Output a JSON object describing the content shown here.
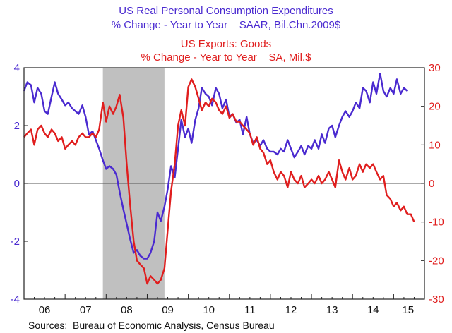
{
  "chart_data": {
    "type": "line",
    "title_lines": [
      "US Real Personal Consumption Expenditures",
      "% Change - Year to Year    SAAR, Bil.Chn.2009$",
      "US Exports: Goods",
      "% Change - Year to Year    SA, Mil.$"
    ],
    "source": "Sources:  Bureau of Economic Analysis, Census Bureau",
    "x_labels": [
      "06",
      "07",
      "08",
      "09",
      "10",
      "11",
      "12",
      "13",
      "14",
      "15"
    ],
    "xlim": [
      2006.0,
      2015.75
    ],
    "shaded_recession": [
      2007.92,
      2009.42
    ],
    "grid": false,
    "zero_line": true,
    "y_left": {
      "ylim": [
        -4,
        4
      ],
      "ticks": [
        "-4",
        "-2",
        "0",
        "2",
        "4"
      ],
      "color": "#4a2ad0"
    },
    "y_right": {
      "ylim": [
        -30,
        30
      ],
      "ticks": [
        "-30",
        "-20",
        "-10",
        "0",
        "10",
        "20",
        "30"
      ],
      "color": "#e01e1e"
    },
    "series": [
      {
        "axis": "left",
        "color": "#4a2ad0",
        "points": [
          [
            2006.0,
            3.2
          ],
          [
            2006.08,
            3.5
          ],
          [
            2006.17,
            3.4
          ],
          [
            2006.25,
            2.8
          ],
          [
            2006.33,
            3.3
          ],
          [
            2006.42,
            3.1
          ],
          [
            2006.5,
            2.5
          ],
          [
            2006.58,
            2.4
          ],
          [
            2006.67,
            3.0
          ],
          [
            2006.75,
            3.5
          ],
          [
            2006.83,
            3.1
          ],
          [
            2006.92,
            2.9
          ],
          [
            2007.0,
            2.7
          ],
          [
            2007.08,
            2.8
          ],
          [
            2007.17,
            2.6
          ],
          [
            2007.25,
            2.5
          ],
          [
            2007.33,
            2.4
          ],
          [
            2007.42,
            2.7
          ],
          [
            2007.5,
            2.3
          ],
          [
            2007.58,
            1.7
          ],
          [
            2007.67,
            1.8
          ],
          [
            2007.75,
            1.5
          ],
          [
            2007.83,
            1.2
          ],
          [
            2007.92,
            0.8
          ],
          [
            2008.0,
            0.5
          ],
          [
            2008.08,
            0.6
          ],
          [
            2008.17,
            0.5
          ],
          [
            2008.25,
            0.3
          ],
          [
            2008.33,
            -0.3
          ],
          [
            2008.42,
            -0.9
          ],
          [
            2008.5,
            -1.4
          ],
          [
            2008.58,
            -1.9
          ],
          [
            2008.67,
            -2.4
          ],
          [
            2008.75,
            -2.3
          ],
          [
            2008.83,
            -2.5
          ],
          [
            2008.92,
            -2.6
          ],
          [
            2009.0,
            -2.6
          ],
          [
            2009.08,
            -2.4
          ],
          [
            2009.17,
            -2.0
          ],
          [
            2009.25,
            -1.0
          ],
          [
            2009.33,
            -1.3
          ],
          [
            2009.42,
            -0.8
          ],
          [
            2009.5,
            -0.2
          ],
          [
            2009.58,
            0.6
          ],
          [
            2009.67,
            0.2
          ],
          [
            2009.75,
            1.2
          ],
          [
            2009.83,
            2.2
          ],
          [
            2009.92,
            1.6
          ],
          [
            2010.0,
            1.9
          ],
          [
            2010.08,
            1.4
          ],
          [
            2010.17,
            2.2
          ],
          [
            2010.25,
            2.6
          ],
          [
            2010.33,
            3.3
          ],
          [
            2010.42,
            3.1
          ],
          [
            2010.5,
            3.0
          ],
          [
            2010.58,
            2.7
          ],
          [
            2010.67,
            3.3
          ],
          [
            2010.75,
            3.1
          ],
          [
            2010.83,
            2.6
          ],
          [
            2010.92,
            2.9
          ],
          [
            2011.0,
            2.3
          ],
          [
            2011.08,
            2.4
          ],
          [
            2011.17,
            2.1
          ],
          [
            2011.25,
            2.2
          ],
          [
            2011.33,
            1.7
          ],
          [
            2011.42,
            2.3
          ],
          [
            2011.5,
            1.7
          ],
          [
            2011.58,
            1.4
          ],
          [
            2011.67,
            1.5
          ],
          [
            2011.75,
            1.3
          ],
          [
            2011.83,
            1.5
          ],
          [
            2011.92,
            1.2
          ],
          [
            2012.0,
            1.1
          ],
          [
            2012.08,
            1.1
          ],
          [
            2012.17,
            1.0
          ],
          [
            2012.25,
            1.2
          ],
          [
            2012.33,
            1.1
          ],
          [
            2012.42,
            1.5
          ],
          [
            2012.5,
            1.2
          ],
          [
            2012.58,
            0.9
          ],
          [
            2012.67,
            1.1
          ],
          [
            2012.75,
            1.3
          ],
          [
            2012.83,
            1.0
          ],
          [
            2012.92,
            1.3
          ],
          [
            2013.0,
            1.2
          ],
          [
            2013.08,
            1.5
          ],
          [
            2013.17,
            1.2
          ],
          [
            2013.25,
            1.7
          ],
          [
            2013.33,
            1.4
          ],
          [
            2013.42,
            1.9
          ],
          [
            2013.5,
            2.0
          ],
          [
            2013.58,
            1.6
          ],
          [
            2013.67,
            2.0
          ],
          [
            2013.75,
            2.3
          ],
          [
            2013.83,
            2.5
          ],
          [
            2013.92,
            2.3
          ],
          [
            2014.0,
            2.5
          ],
          [
            2014.08,
            2.8
          ],
          [
            2014.17,
            2.6
          ],
          [
            2014.25,
            3.3
          ],
          [
            2014.33,
            3.2
          ],
          [
            2014.42,
            2.8
          ],
          [
            2014.5,
            3.5
          ],
          [
            2014.58,
            3.1
          ],
          [
            2014.67,
            3.8
          ],
          [
            2014.75,
            3.2
          ],
          [
            2014.83,
            3.0
          ],
          [
            2014.92,
            3.3
          ],
          [
            2015.0,
            3.1
          ],
          [
            2015.08,
            3.6
          ],
          [
            2015.17,
            3.1
          ],
          [
            2015.25,
            3.3
          ],
          [
            2015.33,
            3.2
          ]
        ]
      },
      {
        "axis": "right",
        "color": "#e01e1e",
        "points": [
          [
            2006.0,
            12
          ],
          [
            2006.08,
            13
          ],
          [
            2006.17,
            14
          ],
          [
            2006.25,
            10
          ],
          [
            2006.33,
            14
          ],
          [
            2006.42,
            15
          ],
          [
            2006.5,
            13
          ],
          [
            2006.58,
            12
          ],
          [
            2006.67,
            14
          ],
          [
            2006.75,
            13
          ],
          [
            2006.83,
            11
          ],
          [
            2006.92,
            12
          ],
          [
            2007.0,
            9
          ],
          [
            2007.08,
            10
          ],
          [
            2007.17,
            11
          ],
          [
            2007.25,
            10
          ],
          [
            2007.33,
            12
          ],
          [
            2007.42,
            13
          ],
          [
            2007.5,
            12
          ],
          [
            2007.58,
            12
          ],
          [
            2007.67,
            13
          ],
          [
            2007.75,
            12
          ],
          [
            2007.83,
            14
          ],
          [
            2007.92,
            21
          ],
          [
            2008.0,
            16
          ],
          [
            2008.08,
            20
          ],
          [
            2008.17,
            18
          ],
          [
            2008.25,
            20
          ],
          [
            2008.33,
            23
          ],
          [
            2008.42,
            17
          ],
          [
            2008.5,
            5
          ],
          [
            2008.58,
            -5
          ],
          [
            2008.67,
            -15
          ],
          [
            2008.75,
            -20
          ],
          [
            2008.83,
            -21
          ],
          [
            2008.92,
            -22
          ],
          [
            2009.0,
            -26
          ],
          [
            2009.08,
            -24
          ],
          [
            2009.17,
            -25
          ],
          [
            2009.25,
            -26
          ],
          [
            2009.33,
            -25
          ],
          [
            2009.42,
            -22
          ],
          [
            2009.5,
            -12
          ],
          [
            2009.58,
            -2
          ],
          [
            2009.67,
            5
          ],
          [
            2009.75,
            15
          ],
          [
            2009.83,
            19
          ],
          [
            2009.92,
            15
          ],
          [
            2010.0,
            25
          ],
          [
            2010.08,
            27
          ],
          [
            2010.17,
            25
          ],
          [
            2010.25,
            22
          ],
          [
            2010.33,
            19
          ],
          [
            2010.42,
            21
          ],
          [
            2010.5,
            20
          ],
          [
            2010.58,
            22
          ],
          [
            2010.67,
            21
          ],
          [
            2010.75,
            19
          ],
          [
            2010.83,
            18
          ],
          [
            2010.92,
            20
          ],
          [
            2011.0,
            17
          ],
          [
            2011.08,
            18
          ],
          [
            2011.17,
            16
          ],
          [
            2011.25,
            16
          ],
          [
            2011.33,
            15
          ],
          [
            2011.42,
            14
          ],
          [
            2011.5,
            13
          ],
          [
            2011.58,
            10
          ],
          [
            2011.67,
            12
          ],
          [
            2011.75,
            9
          ],
          [
            2011.83,
            8
          ],
          [
            2011.92,
            5
          ],
          [
            2012.0,
            6
          ],
          [
            2012.08,
            3
          ],
          [
            2012.17,
            1
          ],
          [
            2012.25,
            3
          ],
          [
            2012.33,
            2
          ],
          [
            2012.42,
            -1
          ],
          [
            2012.5,
            3
          ],
          [
            2012.58,
            1
          ],
          [
            2012.67,
            0
          ],
          [
            2012.75,
            2
          ],
          [
            2012.83,
            -1
          ],
          [
            2012.92,
            0
          ],
          [
            2013.0,
            1
          ],
          [
            2013.08,
            0
          ],
          [
            2013.17,
            2
          ],
          [
            2013.25,
            0
          ],
          [
            2013.33,
            1
          ],
          [
            2013.42,
            3
          ],
          [
            2013.5,
            1
          ],
          [
            2013.58,
            -1
          ],
          [
            2013.67,
            6
          ],
          [
            2013.75,
            3
          ],
          [
            2013.83,
            1
          ],
          [
            2013.92,
            4
          ],
          [
            2014.0,
            1
          ],
          [
            2014.08,
            2
          ],
          [
            2014.17,
            5
          ],
          [
            2014.25,
            3
          ],
          [
            2014.33,
            5
          ],
          [
            2014.42,
            4
          ],
          [
            2014.5,
            5
          ],
          [
            2014.58,
            3
          ],
          [
            2014.67,
            1
          ],
          [
            2014.75,
            2
          ],
          [
            2014.83,
            -3
          ],
          [
            2014.92,
            -4
          ],
          [
            2015.0,
            -6
          ],
          [
            2015.08,
            -5
          ],
          [
            2015.17,
            -7
          ],
          [
            2015.25,
            -6
          ],
          [
            2015.33,
            -8
          ],
          [
            2015.42,
            -8
          ],
          [
            2015.5,
            -10
          ]
        ]
      }
    ]
  }
}
